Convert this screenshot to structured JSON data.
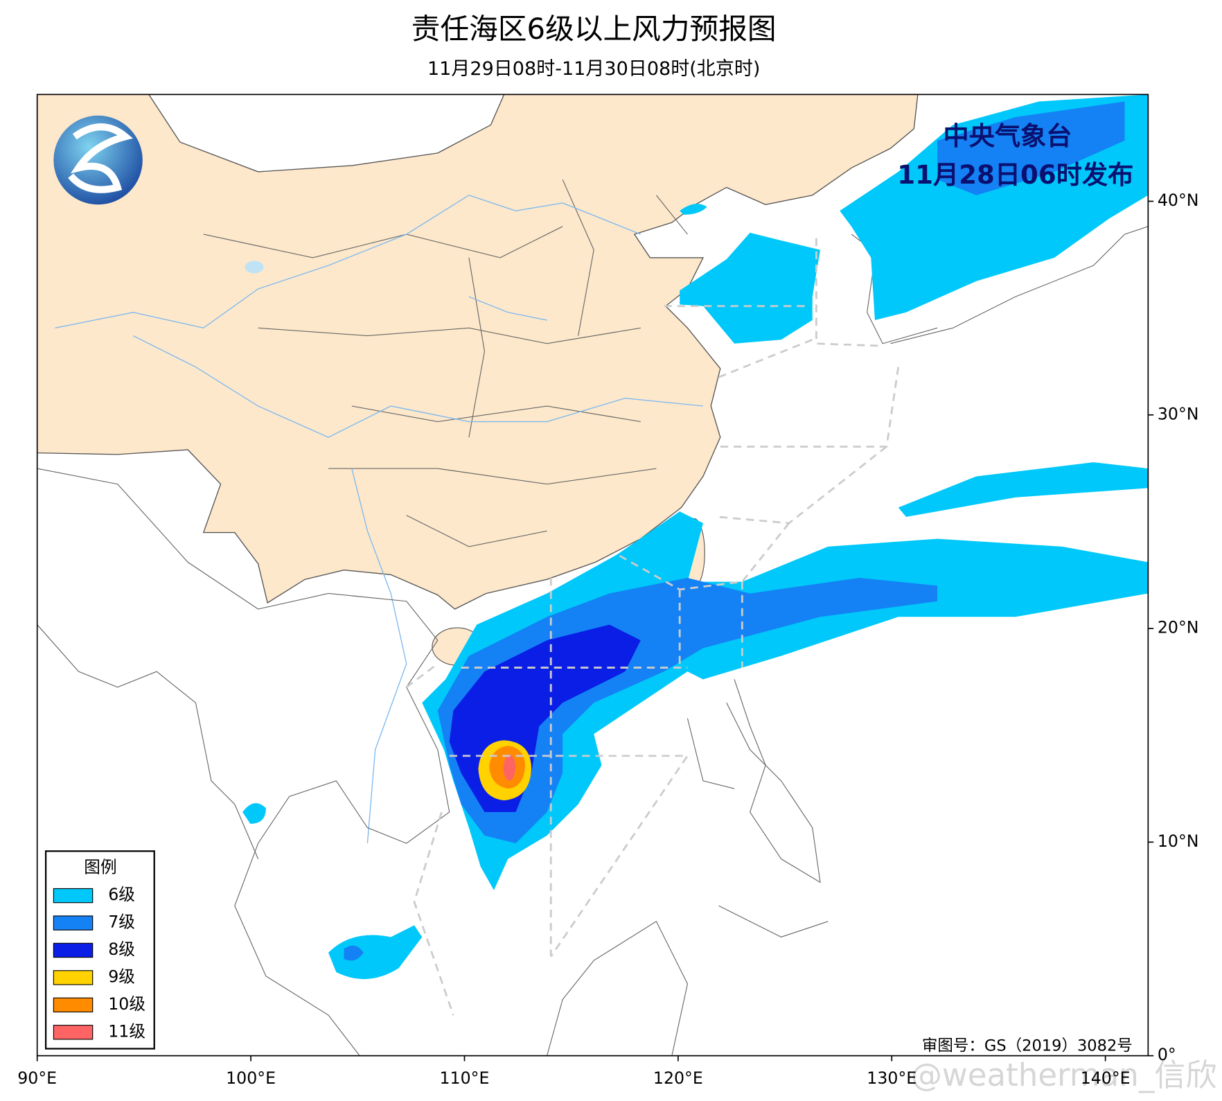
{
  "header": {
    "title": "责任海区6级以上风力预报图",
    "subtitle": "11月29日08时-11月30日08时(北京时)"
  },
  "issuer": {
    "agency": "中央气象台",
    "time": "11月28日06时发布"
  },
  "map": {
    "xlim": [
      90,
      142
    ],
    "ylim": [
      0,
      45
    ],
    "xticks": [
      {
        "value": 90,
        "label": "90°E"
      },
      {
        "value": 100,
        "label": "100°E"
      },
      {
        "value": 110,
        "label": "110°E"
      },
      {
        "value": 120,
        "label": "120°E"
      },
      {
        "value": 130,
        "label": "130°E"
      },
      {
        "value": 140,
        "label": "140°E"
      }
    ],
    "yticks": [
      {
        "value": 0,
        "label": "0°"
      },
      {
        "value": 10,
        "label": "10°N"
      },
      {
        "value": 20,
        "label": "20°N"
      },
      {
        "value": 30,
        "label": "30°N"
      },
      {
        "value": 40,
        "label": "40°N"
      }
    ]
  },
  "legend": {
    "title": "图例",
    "items": [
      {
        "name": "6级",
        "color": "#00c8fa"
      },
      {
        "name": "7级",
        "color": "#1482f5"
      },
      {
        "name": "8级",
        "color": "#0a1ee6"
      },
      {
        "name": "9级",
        "color": "#ffd200"
      },
      {
        "name": "10级",
        "color": "#ff8c00"
      },
      {
        "name": "11级",
        "color": "#ff6464"
      }
    ]
  },
  "footer": {
    "approval": "审图号：GS（2019）3082号",
    "watermark": "@weatherman_信欣"
  }
}
